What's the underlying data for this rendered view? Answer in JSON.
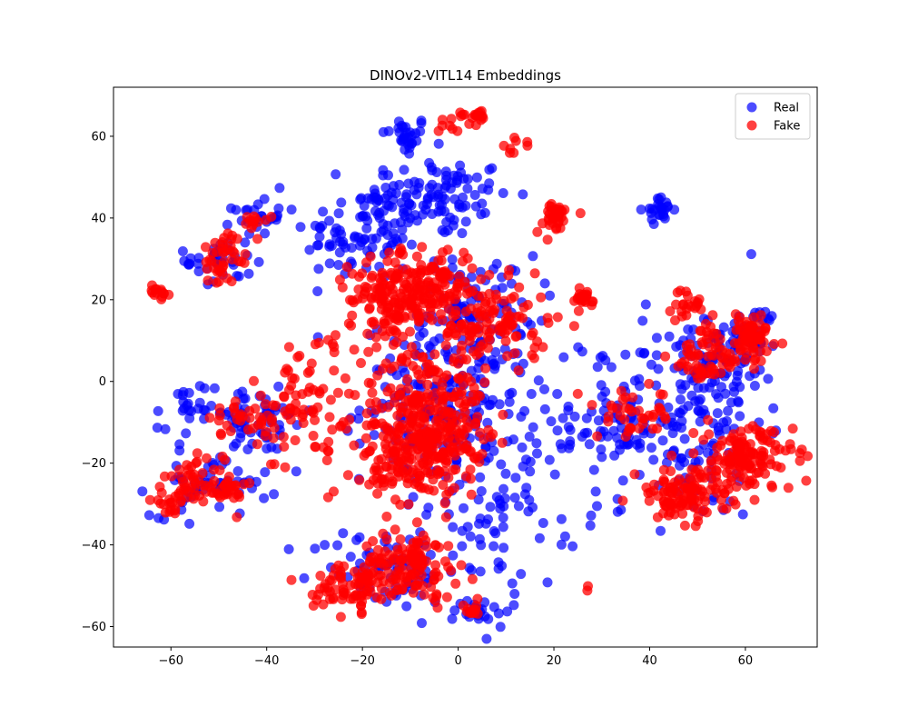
{
  "chart_data": {
    "type": "scatter",
    "title": "DINOv2-VITL14 Embeddings",
    "xlabel": "",
    "ylabel": "",
    "xlim": [
      -72,
      75
    ],
    "ylim": [
      -65,
      72
    ],
    "xticks": [
      -60,
      -40,
      -20,
      0,
      20,
      40,
      60
    ],
    "yticks": [
      -60,
      -40,
      -20,
      0,
      20,
      40,
      60
    ],
    "grid": false,
    "legend_position": "top-right",
    "series": [
      {
        "name": "Real",
        "color": "#0000ff",
        "opacity": 0.7,
        "clusters": [
          {
            "cx": -11,
            "cy": 60,
            "sx": 2.5,
            "sy": 2.5,
            "n": 30
          },
          {
            "cx": -5,
            "cy": 45,
            "sx": 8,
            "sy": 5,
            "n": 110
          },
          {
            "cx": -20,
            "cy": 36,
            "sx": 6,
            "sy": 6,
            "n": 90
          },
          {
            "cx": -42,
            "cy": 40,
            "sx": 2.5,
            "sy": 2,
            "n": 22
          },
          {
            "cx": -50,
            "cy": 30,
            "sx": 3.5,
            "sy": 4,
            "n": 35
          },
          {
            "cx": 42,
            "cy": 42,
            "sx": 1.5,
            "sy": 1.5,
            "n": 25
          },
          {
            "cx": 4,
            "cy": 19,
            "sx": 6,
            "sy": 6,
            "n": 70
          },
          {
            "cx": -2,
            "cy": -5,
            "sx": 9,
            "sy": 10,
            "n": 200
          },
          {
            "cx": 10,
            "cy": -30,
            "sx": 8,
            "sy": 10,
            "n": 80
          },
          {
            "cx": -57,
            "cy": -8,
            "sx": 3,
            "sy": 4,
            "n": 25
          },
          {
            "cx": -42,
            "cy": -10,
            "sx": 6,
            "sy": 4,
            "n": 55
          },
          {
            "cx": -52,
            "cy": -25,
            "sx": 6,
            "sy": 4,
            "n": 55
          },
          {
            "cx": -15,
            "cy": -46,
            "sx": 8,
            "sy": 5,
            "n": 70
          },
          {
            "cx": 5,
            "cy": -56,
            "sx": 3,
            "sy": 2,
            "n": 22
          },
          {
            "cx": 48,
            "cy": -10,
            "sx": 8,
            "sy": 12,
            "n": 150
          },
          {
            "cx": 55,
            "cy": 5,
            "sx": 6,
            "sy": 5,
            "n": 60
          },
          {
            "cx": 62,
            "cy": 12,
            "sx": 3,
            "sy": 3,
            "n": 30
          },
          {
            "cx": 33,
            "cy": -10,
            "sx": 6,
            "sy": 4,
            "n": 40
          },
          {
            "cx": 25,
            "cy": -5,
            "sx": 10,
            "sy": 12,
            "n": 30
          }
        ]
      },
      {
        "name": "Fake",
        "color": "#ff0000",
        "opacity": 0.75,
        "clusters": [
          {
            "cx": 4,
            "cy": 65,
            "sx": 2,
            "sy": 1,
            "n": 18
          },
          {
            "cx": -2,
            "cy": 63,
            "sx": 1.5,
            "sy": 1.5,
            "n": 8
          },
          {
            "cx": 12,
            "cy": 58,
            "sx": 1.5,
            "sy": 1,
            "n": 8
          },
          {
            "cx": -13,
            "cy": 20,
            "sx": 5,
            "sy": 5,
            "n": 160
          },
          {
            "cx": -6,
            "cy": 25,
            "sx": 5,
            "sy": 4,
            "n": 90
          },
          {
            "cx": 7,
            "cy": 14,
            "sx": 6,
            "sy": 5,
            "n": 120
          },
          {
            "cx": -6,
            "cy": -8,
            "sx": 6,
            "sy": 8,
            "n": 260
          },
          {
            "cx": -9,
            "cy": -20,
            "sx": 5,
            "sy": 5,
            "n": 130
          },
          {
            "cx": -42,
            "cy": 40,
            "sx": 1.5,
            "sy": 1,
            "n": 12
          },
          {
            "cx": -48,
            "cy": 32,
            "sx": 2.5,
            "sy": 2.5,
            "n": 30
          },
          {
            "cx": -50,
            "cy": 27,
            "sx": 1.5,
            "sy": 1.5,
            "n": 12
          },
          {
            "cx": -63,
            "cy": 22,
            "sx": 1.3,
            "sy": 1.2,
            "n": 14
          },
          {
            "cx": 20,
            "cy": 40,
            "sx": 2,
            "sy": 2,
            "n": 35
          },
          {
            "cx": 26,
            "cy": 20,
            "sx": 1.5,
            "sy": 1.2,
            "n": 22
          },
          {
            "cx": 48,
            "cy": 19,
            "sx": 1.8,
            "sy": 1.8,
            "n": 22
          },
          {
            "cx": -10,
            "cy": -45,
            "sx": 5,
            "sy": 4,
            "n": 120
          },
          {
            "cx": -22,
            "cy": -50,
            "sx": 4,
            "sy": 3,
            "n": 80
          },
          {
            "cx": 3,
            "cy": -56,
            "sx": 1.5,
            "sy": 1,
            "n": 12
          },
          {
            "cx": 60,
            "cy": -19,
            "sx": 5,
            "sy": 4,
            "n": 140
          },
          {
            "cx": 47,
            "cy": -28,
            "sx": 5,
            "sy": 3,
            "n": 110
          },
          {
            "cx": 61,
            "cy": 11,
            "sx": 3,
            "sy": 3,
            "n": 70
          },
          {
            "cx": 52,
            "cy": 6,
            "sx": 4,
            "sy": 4,
            "n": 60
          },
          {
            "cx": -55,
            "cy": -24,
            "sx": 3,
            "sy": 2.5,
            "n": 40
          },
          {
            "cx": -48,
            "cy": -27,
            "sx": 2,
            "sy": 2,
            "n": 28
          },
          {
            "cx": -60,
            "cy": -29,
            "sx": 2,
            "sy": 1.5,
            "n": 22
          },
          {
            "cx": -35,
            "cy": -7,
            "sx": 5,
            "sy": 5,
            "n": 55
          },
          {
            "cx": -45,
            "cy": -10,
            "sx": 4,
            "sy": 3,
            "n": 30
          },
          {
            "cx": 37,
            "cy": -8,
            "sx": 4,
            "sy": 3,
            "n": 40
          },
          {
            "cx": -25,
            "cy": -10,
            "sx": 6,
            "sy": 10,
            "n": 40
          },
          {
            "cx": 27,
            "cy": -51,
            "sx": 0.3,
            "sy": 0.3,
            "n": 2
          }
        ]
      }
    ]
  }
}
